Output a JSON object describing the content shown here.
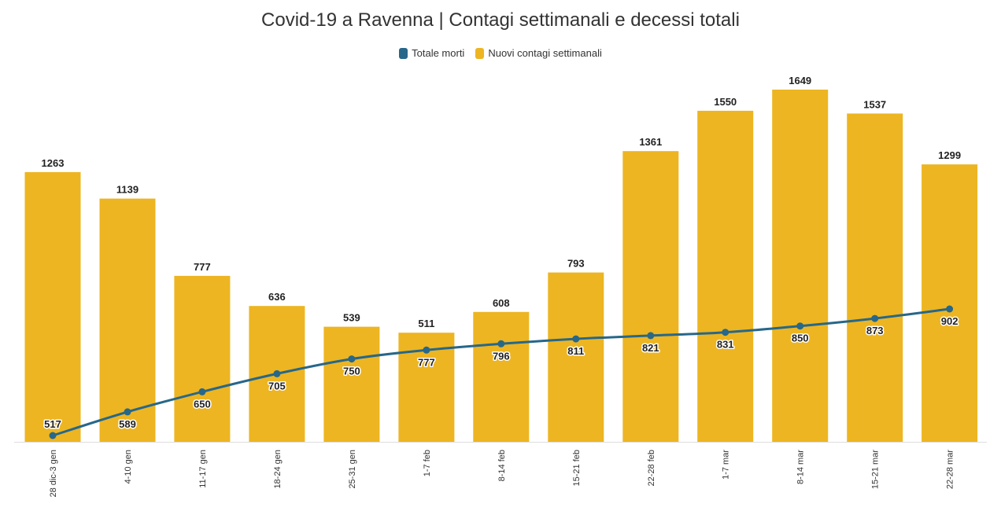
{
  "chart_data": {
    "type": "bar",
    "title": "Covid-19 a Ravenna | Contagi settimanali e decessi totali",
    "categories": [
      "28 dic-3 gen",
      "4-10 gen",
      "11-17 gen",
      "18-24 gen",
      "25-31 gen",
      "1-7 feb",
      "8-14 feb",
      "15-21 feb",
      "22-28 feb",
      "1-7 mar",
      "8-14 mar",
      "15-21 mar",
      "22-28 mar"
    ],
    "series": [
      {
        "name": "Nuovi contagi settimanali",
        "type": "bar",
        "color": "#EDB521",
        "values": [
          1263,
          1139,
          777,
          636,
          539,
          511,
          608,
          793,
          1361,
          1550,
          1649,
          1537,
          1299
        ]
      },
      {
        "name": "Totale morti",
        "type": "line",
        "color": "#27678A",
        "values": [
          517,
          589,
          650,
          705,
          750,
          777,
          796,
          811,
          821,
          831,
          850,
          873,
          902
        ]
      }
    ],
    "legend": {
      "position": "top-center",
      "entries": [
        "Totale morti",
        "Nuovi contagi settimanali"
      ]
    },
    "xlabel": "",
    "ylabel": "",
    "grid": false,
    "bar_ylim": [
      0,
      1649
    ],
    "line_ylim": [
      517,
      902
    ]
  }
}
